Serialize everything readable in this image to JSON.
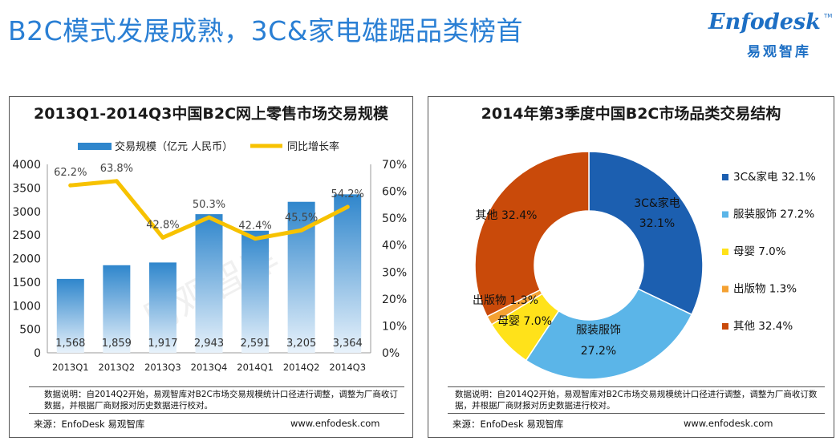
{
  "header": {
    "title": "B2C模式发展成熟，3C&家电雄踞品类榜首",
    "logo_main": "Enfodesk",
    "logo_sub": "易观智库",
    "logo_tm": "TM"
  },
  "watermark": "易观智库",
  "chart_data": [
    {
      "type": "bar",
      "title": "2013Q1-2014Q3中国B2C网上零售市场交易规模",
      "categories": [
        "2013Q1",
        "2013Q2",
        "2013Q3",
        "2013Q4",
        "2014Q1",
        "2014Q2",
        "2014Q3"
      ],
      "series": [
        {
          "name": "交易规模（亿元 人民币）",
          "kind": "bar",
          "axis": "left",
          "values": [
            1568,
            1859,
            1917,
            2943,
            2591,
            3205,
            3364
          ],
          "labels": [
            "1,568",
            "1,859",
            "1,917",
            "2,943",
            "2,591",
            "3,205",
            "3,364"
          ]
        },
        {
          "name": "同比增长率",
          "kind": "line",
          "axis": "right",
          "values": [
            62.2,
            63.8,
            42.8,
            50.3,
            42.4,
            45.5,
            54.2
          ],
          "labels": [
            "62.2%",
            "63.8%",
            "42.8%",
            "50.3%",
            "42.4%",
            "45.5%",
            "54.2%"
          ]
        }
      ],
      "ylim_left": [
        0,
        4000
      ],
      "yticks_left": [
        "0",
        "500",
        "1000",
        "1500",
        "2000",
        "2500",
        "3000",
        "3500",
        "4000"
      ],
      "ylim_right": [
        0,
        70
      ],
      "yticks_right": [
        "0%",
        "10%",
        "20%",
        "30%",
        "40%",
        "50%",
        "60%",
        "70%"
      ],
      "legend_position": "top",
      "grid": false,
      "colors": {
        "bar_top": "#2f86cc",
        "bar_bottom": "#e8f2fb",
        "line": "#f7c200"
      },
      "note": "数据说明：自2014Q2开始，易观智库对B2C市场交易规模统计口径进行调整，调整为厂商收订数据，并根据厂商财报对历史数据进行校对。",
      "source": "来源：EnfoDesk 易观智库",
      "url": "www.enfodesk.com"
    },
    {
      "type": "pie",
      "title": "2014年第3季度中国B2C市场品类交易结构",
      "donut": true,
      "slices": [
        {
          "name": "3C&家电",
          "value": 32.1,
          "color": "#1c5fb0",
          "legend": "3C&家电 32.1%",
          "label_name": "3C&家电",
          "label_value": "32.1%"
        },
        {
          "name": "服装服饰",
          "value": 27.2,
          "color": "#5bb5e8",
          "legend": "服装服饰 27.2%",
          "label_name": "服装服饰",
          "label_value": "27.2%"
        },
        {
          "name": "母婴",
          "value": 7.0,
          "color": "#ffe21a",
          "legend": "母婴 7.0%",
          "label_name": "母婴",
          "label_value": "7.0%"
        },
        {
          "name": "出版物",
          "value": 1.3,
          "color": "#f4a132",
          "legend": "出版物 1.3%",
          "label_name": "出版物",
          "label_value": "1.3%"
        },
        {
          "name": "其他",
          "value": 32.4,
          "color": "#c94a0a",
          "legend": "其他 32.4%",
          "label_name": "其他",
          "label_value": "32.4%"
        }
      ],
      "legend_position": "right",
      "note": "数据说明：自2014Q2开始，易观智库对B2C市场交易规模统计口径进行调整，调整为厂商收订数据，并根据厂商财报对历史数据进行校对。",
      "source": "来源：EnfoDesk 易观智库",
      "url": "www.enfodesk.com"
    }
  ]
}
